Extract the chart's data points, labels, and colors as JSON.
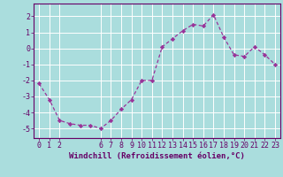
{
  "x": [
    0,
    1,
    2,
    3,
    4,
    5,
    6,
    7,
    8,
    9,
    10,
    11,
    12,
    13,
    14,
    15,
    16,
    17,
    18,
    19,
    20,
    21,
    22,
    23
  ],
  "y": [
    -2.2,
    -3.2,
    -4.5,
    -4.7,
    -4.8,
    -4.8,
    -5.0,
    -4.5,
    -3.8,
    -3.2,
    -2.0,
    -2.0,
    0.1,
    0.6,
    1.1,
    1.5,
    1.4,
    2.1,
    0.7,
    -0.4,
    -0.5,
    0.1,
    -0.4,
    -1.0
  ],
  "line_color": "#993399",
  "marker": "D",
  "marker_size": 2.2,
  "line_width": 0.9,
  "bg_color": "#aadddd",
  "plot_bg_color": "#aadddd",
  "grid_color": "#ffffff",
  "xlabel": "Windchill (Refroidissement éolien,°C)",
  "xlabel_fontsize": 6.5,
  "xlim": [
    -0.5,
    23.5
  ],
  "ylim": [
    -5.6,
    2.8
  ],
  "yticks": [
    -5,
    -4,
    -3,
    -2,
    -1,
    0,
    1,
    2
  ],
  "xticks": [
    0,
    1,
    2,
    6,
    7,
    8,
    9,
    10,
    11,
    12,
    13,
    14,
    15,
    16,
    17,
    18,
    19,
    20,
    21,
    22,
    23
  ],
  "tick_fontsize": 6.0,
  "label_color": "#660066",
  "grid_linewidth": 0.7,
  "spine_color": "#660066",
  "xlabel_fontweight": "bold"
}
